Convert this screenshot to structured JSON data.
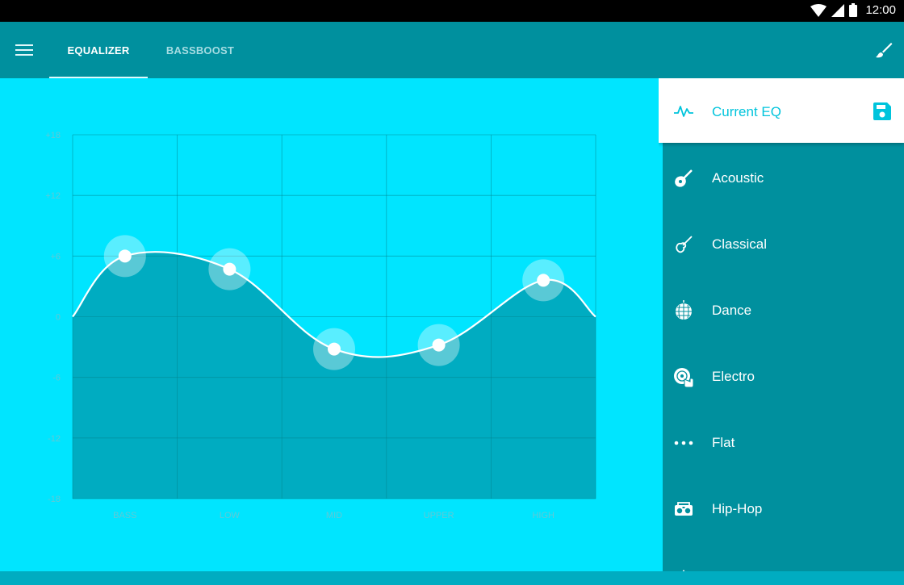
{
  "status_bar": {
    "time": "12:00"
  },
  "tabs": [
    {
      "label": "EQUALIZER",
      "active": true
    },
    {
      "label": "BASSBOOST",
      "active": false
    }
  ],
  "equalizer": {
    "y_ticks": [
      "+18",
      "+12",
      "+6",
      "0",
      "-6",
      "-12",
      "-18"
    ],
    "bands": [
      "BASS",
      "LOW",
      "MID",
      "UPPER",
      "HIGH"
    ],
    "gains_db": [
      6,
      4.7,
      -3.2,
      -2.8,
      3.6
    ],
    "ylim": [
      -18,
      18
    ]
  },
  "presets": {
    "current": {
      "label": "Current EQ",
      "icon": "waveform-icon"
    },
    "items": [
      {
        "label": "Acoustic",
        "icon": "acoustic-guitar-icon"
      },
      {
        "label": "Classical",
        "icon": "violin-icon"
      },
      {
        "label": "Dance",
        "icon": "disco-ball-icon"
      },
      {
        "label": "Electro",
        "icon": "turntable-icon"
      },
      {
        "label": "Flat",
        "icon": "dots-icon"
      },
      {
        "label": "Hip-Hop",
        "icon": "boombox-icon"
      }
    ]
  },
  "colors": {
    "accent": "#00e5ff",
    "toolbar": "#00909e",
    "panel": "#00909e",
    "graph_fill": "#00acc1",
    "current_eq_text": "#00c4dc"
  }
}
